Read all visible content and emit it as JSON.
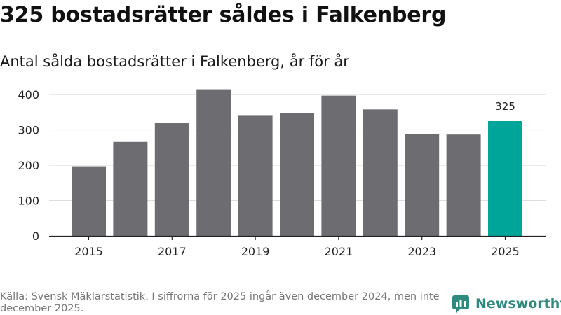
{
  "title": "325 bostadsrätter såldes i Falkenberg",
  "subtitle": "Antal sålda bostadsrätter i Falkenberg, år för år",
  "source": "Källa: Svensk Mäklarstatistik. I siffrorna för 2025 ingår även december 2024, men inte december 2025.",
  "brand": {
    "name": "Newsworthy",
    "icon": "newsworthy-logo-icon"
  },
  "colors": {
    "bar": "#6d6c71",
    "highlight": "#00a59a",
    "grid": "#dddddd",
    "axis": "#222222",
    "brand": "#2e8a7e"
  },
  "chart_data": {
    "type": "bar",
    "title": "Antal sålda bostadsrätter i Falkenberg, år för år",
    "xlabel": "",
    "ylabel": "",
    "categories": [
      "2015",
      "2016",
      "2017",
      "2018",
      "2019",
      "2020",
      "2021",
      "2022",
      "2023",
      "2024",
      "2025"
    ],
    "values": [
      197,
      266,
      319,
      415,
      342,
      347,
      397,
      358,
      289,
      287,
      325
    ],
    "highlight_index": 10,
    "data_labels": [
      {
        "index": 10,
        "text": "325"
      }
    ],
    "x_ticks": [
      "2015",
      "2017",
      "2019",
      "2021",
      "2023",
      "2025"
    ],
    "y_ticks": [
      0,
      100,
      200,
      300,
      400
    ],
    "ylim": [
      0,
      430
    ],
    "grid": true,
    "legend": "none"
  }
}
